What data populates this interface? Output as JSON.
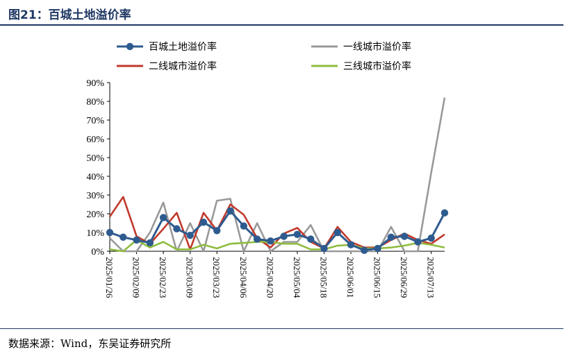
{
  "figure": {
    "title": "图21：百城土地溢价率",
    "source": "数据来源：Wind，东吴证券研究所"
  },
  "chart_data": {
    "type": "line",
    "ylim": [
      0,
      90
    ],
    "yticks": [
      "0%",
      "10%",
      "20%",
      "30%",
      "40%",
      "50%",
      "60%",
      "70%",
      "80%",
      "90%"
    ],
    "x": [
      "2025/01/26",
      "2025/02/02",
      "2025/02/09",
      "2025/02/16",
      "2025/02/23",
      "2025/03/02",
      "2025/03/09",
      "2025/03/16",
      "2025/03/23",
      "2025/03/30",
      "2025/04/06",
      "2025/04/13",
      "2025/04/20",
      "2025/04/27",
      "2025/05/04",
      "2025/05/11",
      "2025/05/18",
      "2025/05/25",
      "2025/06/01",
      "2025/06/08",
      "2025/06/15",
      "2025/06/22",
      "2025/06/29",
      "2025/07/06",
      "2025/07/13",
      "2025/07/20"
    ],
    "xtick_labels": [
      "2025/01/26",
      "2025/02/09",
      "2025/02/23",
      "2025/03/09",
      "2025/03/23",
      "2025/04/06",
      "2025/04/20",
      "2025/05/04",
      "2025/05/18",
      "2025/06/01",
      "2025/06/15",
      "2025/06/29",
      "2025/07/13"
    ],
    "legend_position": "top",
    "series": [
      {
        "name": "百城土地溢价率",
        "color": "#2e5b8f",
        "markers": true,
        "values": [
          10,
          7.5,
          6,
          4.5,
          18,
          12,
          8.5,
          15.5,
          11,
          21.5,
          13.5,
          6.5,
          5.5,
          8,
          9,
          6.5,
          1.5,
          10,
          3.5,
          0.5,
          1.5,
          7.5,
          8,
          5,
          7,
          20.5
        ]
      },
      {
        "name": "一线城市溢价率",
        "color": "#999999",
        "markers": false,
        "values": [
          7,
          0,
          0,
          10,
          26,
          0,
          15,
          0,
          27,
          28,
          0,
          15,
          0,
          5,
          5,
          14,
          0,
          0,
          0,
          0,
          0,
          13,
          0,
          0,
          42,
          82
        ]
      },
      {
        "name": "二线城市溢价率",
        "color": "#c0392b",
        "markers": false,
        "values": [
          18.5,
          29,
          8,
          4,
          12,
          20.5,
          1,
          20.5,
          11,
          25,
          19.5,
          7,
          2,
          9.5,
          12.5,
          5,
          1.5,
          13,
          5,
          2,
          2,
          6,
          9.5,
          6,
          4,
          9
        ]
      },
      {
        "name": "三线城市溢价率",
        "color": "#8fbc3f",
        "markers": false,
        "values": [
          1,
          0,
          6,
          2,
          5,
          1,
          1,
          3.5,
          1.5,
          4,
          4.5,
          5,
          5,
          4,
          4,
          1,
          1,
          3,
          3.5,
          1.5,
          1.5,
          2,
          3,
          4.5,
          3.5,
          2
        ]
      }
    ]
  }
}
